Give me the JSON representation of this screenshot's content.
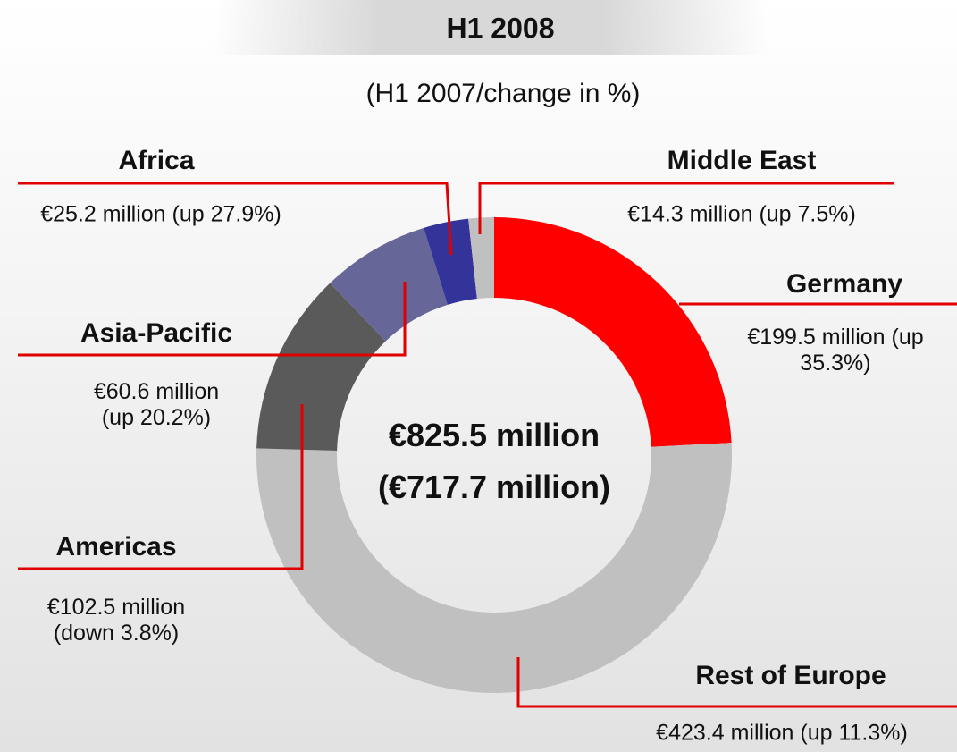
{
  "chart_data": {
    "type": "pie",
    "title": "H1 2008",
    "subtitle": "(H1 2007/change in %)",
    "center_labels": [
      "€825.5 million",
      "(€717.7 million)"
    ],
    "categories": [
      "Germany",
      "Rest of Europe",
      "Americas",
      "Asia-Pacific",
      "Africa",
      "Middle East"
    ],
    "values": [
      199.5,
      423.4,
      102.5,
      60.6,
      25.2,
      14.3
    ],
    "value_labels": [
      "€199.5 million (up 35.3%)",
      "€423.4 million (up 11.3%)",
      "€102.5 million (down 3.8%)",
      "€60.6 million (up 20.2%)",
      "€25.2 million (up 27.9%)",
      "€14.3 million (up 7.5%)"
    ],
    "colors": [
      "#ff0000",
      "#c0c0c0",
      "#5a5a5a",
      "#666699",
      "#333399",
      "#c0c0c0"
    ]
  }
}
